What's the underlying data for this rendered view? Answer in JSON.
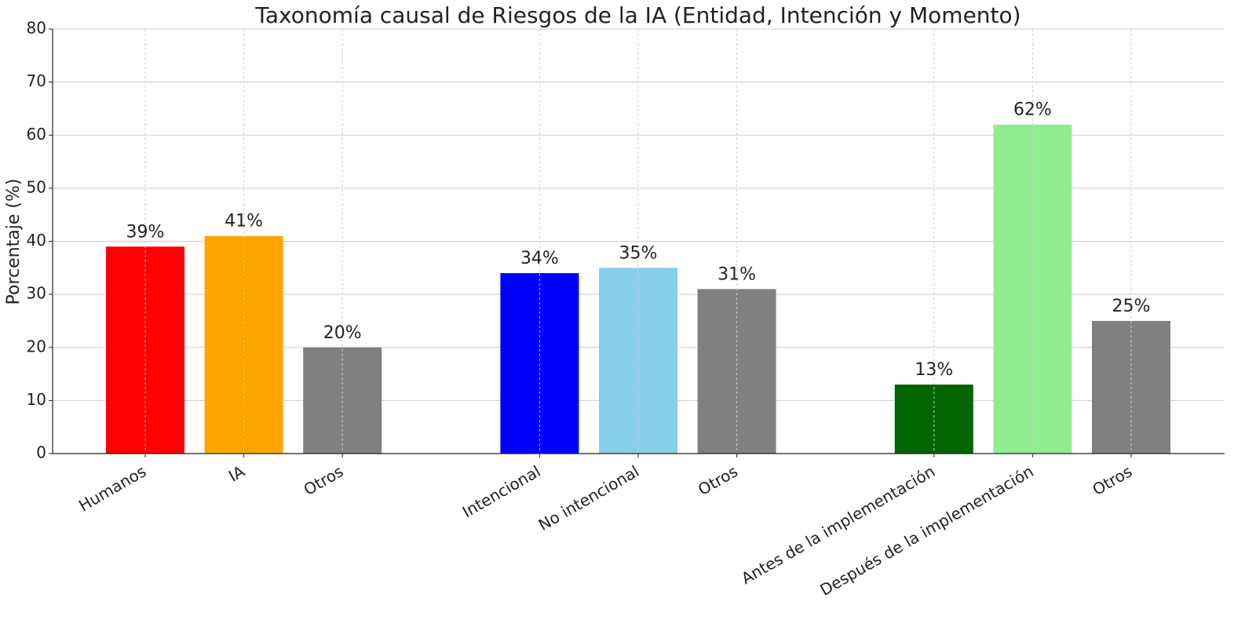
{
  "chart_data": {
    "type": "bar",
    "title": "Taxonomía causal de Riesgos de la IA (Entidad, Intención y Momento)",
    "y_label": "Porcentaje (%)",
    "categories": [
      "Humanos",
      "IA",
      "Otros",
      null,
      "Intencional",
      "No intencional",
      "Otros",
      null,
      "Antes de la implementación",
      "Después de la implementación",
      "Otros"
    ],
    "values": [
      39,
      41,
      20,
      null,
      34,
      35,
      31,
      null,
      13,
      62,
      25
    ],
    "value_labels": [
      "39%",
      "41%",
      "20%",
      null,
      "34%",
      "35%",
      "31%",
      null,
      "13%",
      "62%",
      "25%"
    ],
    "colors": [
      "#ff0000",
      "#ffa500",
      "#808080",
      null,
      "#0000ff",
      "#87ceeb",
      "#808080",
      null,
      "#006400",
      "#90ee90",
      "#808080"
    ],
    "ylim": [
      0,
      80
    ],
    "yticks": [
      0,
      10,
      20,
      30,
      40,
      50,
      60,
      70,
      80
    ],
    "grid": true
  }
}
